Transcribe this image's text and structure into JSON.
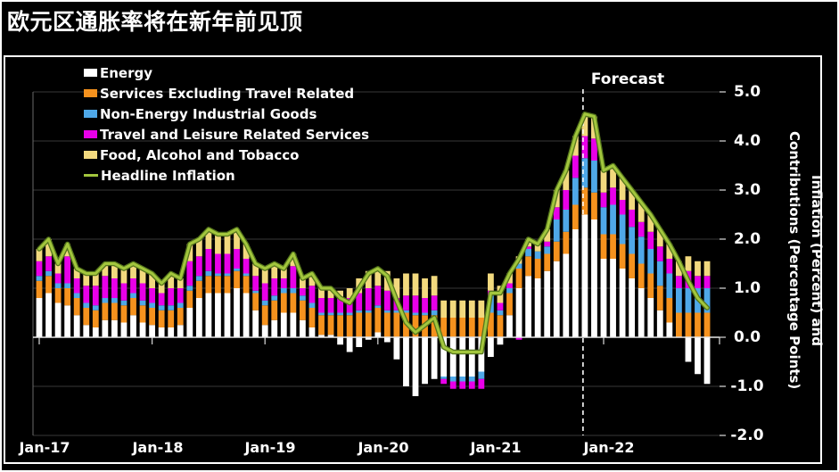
{
  "page": {
    "title": "欧元区通胀率将在新年前见顶",
    "background": "#000000",
    "accent_text": "#ffffff"
  },
  "chart": {
    "forecast_label": "Forecast",
    "y_axis": {
      "labels": [
        "5.0",
        "4.0",
        "3.0",
        "2.0",
        "1.0",
        "0.0",
        "-1.0",
        "-2.0"
      ],
      "title_line1": "Inflation (Percent) and",
      "title_line2": "Contributions (Percentage Points)"
    },
    "x_axis": {
      "labels": [
        "Jan-17",
        "Jan-18",
        "Jan-19",
        "Jan-20",
        "Jan-21",
        "Jan-22"
      ]
    }
  },
  "chart_data": {
    "type": "bar",
    "subtype": "stacked-bar-with-line",
    "title": "欧元区通胀率将在新年前见顶",
    "ylabel": "Inflation (Percent) and Contributions (Percentage Points)",
    "ylim": [
      -2.0,
      5.5
    ],
    "y_ticks": [
      5,
      4,
      3,
      2,
      1,
      0,
      -1,
      -2
    ],
    "grid": "horizontal",
    "legend_position": "top-left",
    "forecast_start_index": 58,
    "forecast_start_month": "2021-11",
    "x": [
      "2017-01",
      "2017-02",
      "2017-03",
      "2017-04",
      "2017-05",
      "2017-06",
      "2017-07",
      "2017-08",
      "2017-09",
      "2017-10",
      "2017-11",
      "2017-12",
      "2018-01",
      "2018-02",
      "2018-03",
      "2018-04",
      "2018-05",
      "2018-06",
      "2018-07",
      "2018-08",
      "2018-09",
      "2018-10",
      "2018-11",
      "2018-12",
      "2019-01",
      "2019-02",
      "2019-03",
      "2019-04",
      "2019-05",
      "2019-06",
      "2019-07",
      "2019-08",
      "2019-09",
      "2019-10",
      "2019-11",
      "2019-12",
      "2020-01",
      "2020-02",
      "2020-03",
      "2020-04",
      "2020-05",
      "2020-06",
      "2020-07",
      "2020-08",
      "2020-09",
      "2020-10",
      "2020-11",
      "2020-12",
      "2021-01",
      "2021-02",
      "2021-03",
      "2021-04",
      "2021-05",
      "2021-06",
      "2021-07",
      "2021-08",
      "2021-09",
      "2021-10",
      "2021-11",
      "2021-12",
      "2022-01",
      "2022-02",
      "2022-03",
      "2022-04",
      "2022-05",
      "2022-06",
      "2022-07",
      "2022-08",
      "2022-09",
      "2022-10",
      "2022-11",
      "2022-12"
    ],
    "series": [
      {
        "name": "Energy",
        "color": "#ffffff",
        "values": [
          0.8,
          0.9,
          0.7,
          0.65,
          0.45,
          0.25,
          0.2,
          0.35,
          0.35,
          0.3,
          0.45,
          0.3,
          0.25,
          0.2,
          0.2,
          0.25,
          0.6,
          0.8,
          0.9,
          0.9,
          0.9,
          1.0,
          0.9,
          0.55,
          0.25,
          0.35,
          0.5,
          0.5,
          0.35,
          0.2,
          0.05,
          0.05,
          -0.15,
          -0.3,
          -0.2,
          -0.05,
          0.1,
          -0.1,
          -0.45,
          -1.0,
          -1.2,
          -0.95,
          -0.85,
          -0.8,
          -0.8,
          -0.8,
          -0.8,
          -0.7,
          -0.4,
          -0.15,
          0.45,
          1.0,
          1.25,
          1.2,
          1.35,
          1.55,
          1.7,
          2.2,
          2.5,
          2.4,
          1.6,
          1.6,
          1.4,
          1.2,
          1.0,
          0.8,
          0.55,
          0.3,
          0.0,
          -0.5,
          -0.75,
          -0.95
        ]
      },
      {
        "name": "Services Excluding Travel Related",
        "color": "#f5921e",
        "values": [
          0.35,
          0.35,
          0.3,
          0.35,
          0.35,
          0.35,
          0.35,
          0.35,
          0.35,
          0.35,
          0.35,
          0.35,
          0.35,
          0.35,
          0.35,
          0.35,
          0.35,
          0.35,
          0.35,
          0.35,
          0.35,
          0.35,
          0.35,
          0.35,
          0.4,
          0.4,
          0.4,
          0.4,
          0.4,
          0.4,
          0.4,
          0.4,
          0.45,
          0.45,
          0.5,
          0.5,
          0.5,
          0.5,
          0.5,
          0.5,
          0.45,
          0.45,
          0.45,
          0.4,
          0.4,
          0.4,
          0.4,
          0.4,
          0.5,
          0.45,
          0.45,
          0.4,
          0.4,
          0.4,
          0.35,
          0.4,
          0.45,
          0.5,
          0.55,
          0.55,
          0.5,
          0.5,
          0.5,
          0.5,
          0.5,
          0.5,
          0.5,
          0.5,
          0.5,
          0.5,
          0.5,
          0.5
        ]
      },
      {
        "name": "Non-Energy Industrial Goods",
        "color": "#4fa8e8",
        "values": [
          0.1,
          0.1,
          0.1,
          0.1,
          0.1,
          0.1,
          0.1,
          0.1,
          0.1,
          0.1,
          0.1,
          0.1,
          0.1,
          0.1,
          0.1,
          0.1,
          0.1,
          0.1,
          0.1,
          0.05,
          0.05,
          0.05,
          0.05,
          0.05,
          0.1,
          0.1,
          0.1,
          0.1,
          0.1,
          0.1,
          0.05,
          0.05,
          0.05,
          0.05,
          0.05,
          0.05,
          0.05,
          0.05,
          0.05,
          0.05,
          0.05,
          0.05,
          0.1,
          -0.05,
          -0.1,
          -0.1,
          -0.1,
          -0.15,
          0.35,
          0.1,
          0.1,
          0.1,
          0.15,
          0.15,
          0.15,
          0.45,
          0.45,
          0.55,
          0.6,
          0.65,
          0.55,
          0.6,
          0.6,
          0.55,
          0.55,
          0.5,
          0.5,
          0.5,
          0.5,
          0.5,
          0.5,
          0.5
        ]
      },
      {
        "name": "Travel and Leisure Related Services",
        "color": "#e800e8",
        "values": [
          0.3,
          0.3,
          0.2,
          0.55,
          0.3,
          0.35,
          0.4,
          0.45,
          0.4,
          0.35,
          0.3,
          0.35,
          0.3,
          0.25,
          0.35,
          0.3,
          0.5,
          0.4,
          0.45,
          0.4,
          0.4,
          0.4,
          0.3,
          0.3,
          0.35,
          0.35,
          0.2,
          0.45,
          0.15,
          0.35,
          0.3,
          0.3,
          0.3,
          0.3,
          0.35,
          0.45,
          0.4,
          0.4,
          0.25,
          0.3,
          0.35,
          0.3,
          0.3,
          -0.1,
          -0.15,
          -0.15,
          -0.15,
          -0.2,
          0.1,
          0.15,
          0.1,
          -0.05,
          0.05,
          0.0,
          0.1,
          0.25,
          0.4,
          0.45,
          0.45,
          0.45,
          0.3,
          0.35,
          0.3,
          0.35,
          0.3,
          0.35,
          0.3,
          0.3,
          0.25,
          0.35,
          0.25,
          0.25
        ]
      },
      {
        "name": "Food, Alcohol and Tobacco",
        "color": "#f2d97e",
        "values": [
          0.25,
          0.35,
          0.2,
          0.25,
          0.2,
          0.25,
          0.25,
          0.25,
          0.3,
          0.3,
          0.3,
          0.3,
          0.3,
          0.2,
          0.3,
          0.2,
          0.35,
          0.35,
          0.4,
          0.4,
          0.4,
          0.4,
          0.3,
          0.25,
          0.3,
          0.3,
          0.2,
          0.25,
          0.2,
          0.25,
          0.2,
          0.2,
          0.15,
          0.2,
          0.3,
          0.35,
          0.35,
          0.4,
          0.4,
          0.45,
          0.45,
          0.4,
          0.4,
          0.35,
          0.35,
          0.35,
          0.35,
          0.35,
          0.35,
          0.35,
          0.2,
          0.15,
          0.15,
          0.15,
          0.25,
          0.35,
          0.4,
          0.4,
          0.45,
          0.45,
          0.45,
          0.45,
          0.45,
          0.4,
          0.4,
          0.35,
          0.35,
          0.3,
          0.3,
          0.3,
          0.3,
          0.3
        ]
      }
    ],
    "line": {
      "name": "Headline Inflation",
      "color": "#a2c63d",
      "values": [
        1.8,
        2.0,
        1.5,
        1.9,
        1.4,
        1.3,
        1.3,
        1.5,
        1.5,
        1.4,
        1.5,
        1.4,
        1.3,
        1.1,
        1.3,
        1.2,
        1.9,
        2.0,
        2.2,
        2.1,
        2.1,
        2.2,
        1.9,
        1.5,
        1.4,
        1.5,
        1.4,
        1.7,
        1.2,
        1.3,
        1.0,
        1.0,
        0.8,
        0.7,
        1.0,
        1.3,
        1.4,
        1.25,
        0.75,
        0.3,
        0.1,
        0.25,
        0.4,
        -0.2,
        -0.3,
        -0.3,
        -0.3,
        -0.3,
        0.9,
        0.9,
        1.3,
        1.6,
        2.0,
        1.9,
        2.2,
        3.0,
        3.4,
        4.1,
        4.55,
        4.5,
        3.4,
        3.5,
        3.25,
        3.0,
        2.75,
        2.5,
        2.2,
        1.9,
        1.55,
        1.15,
        0.8,
        0.6
      ]
    }
  }
}
